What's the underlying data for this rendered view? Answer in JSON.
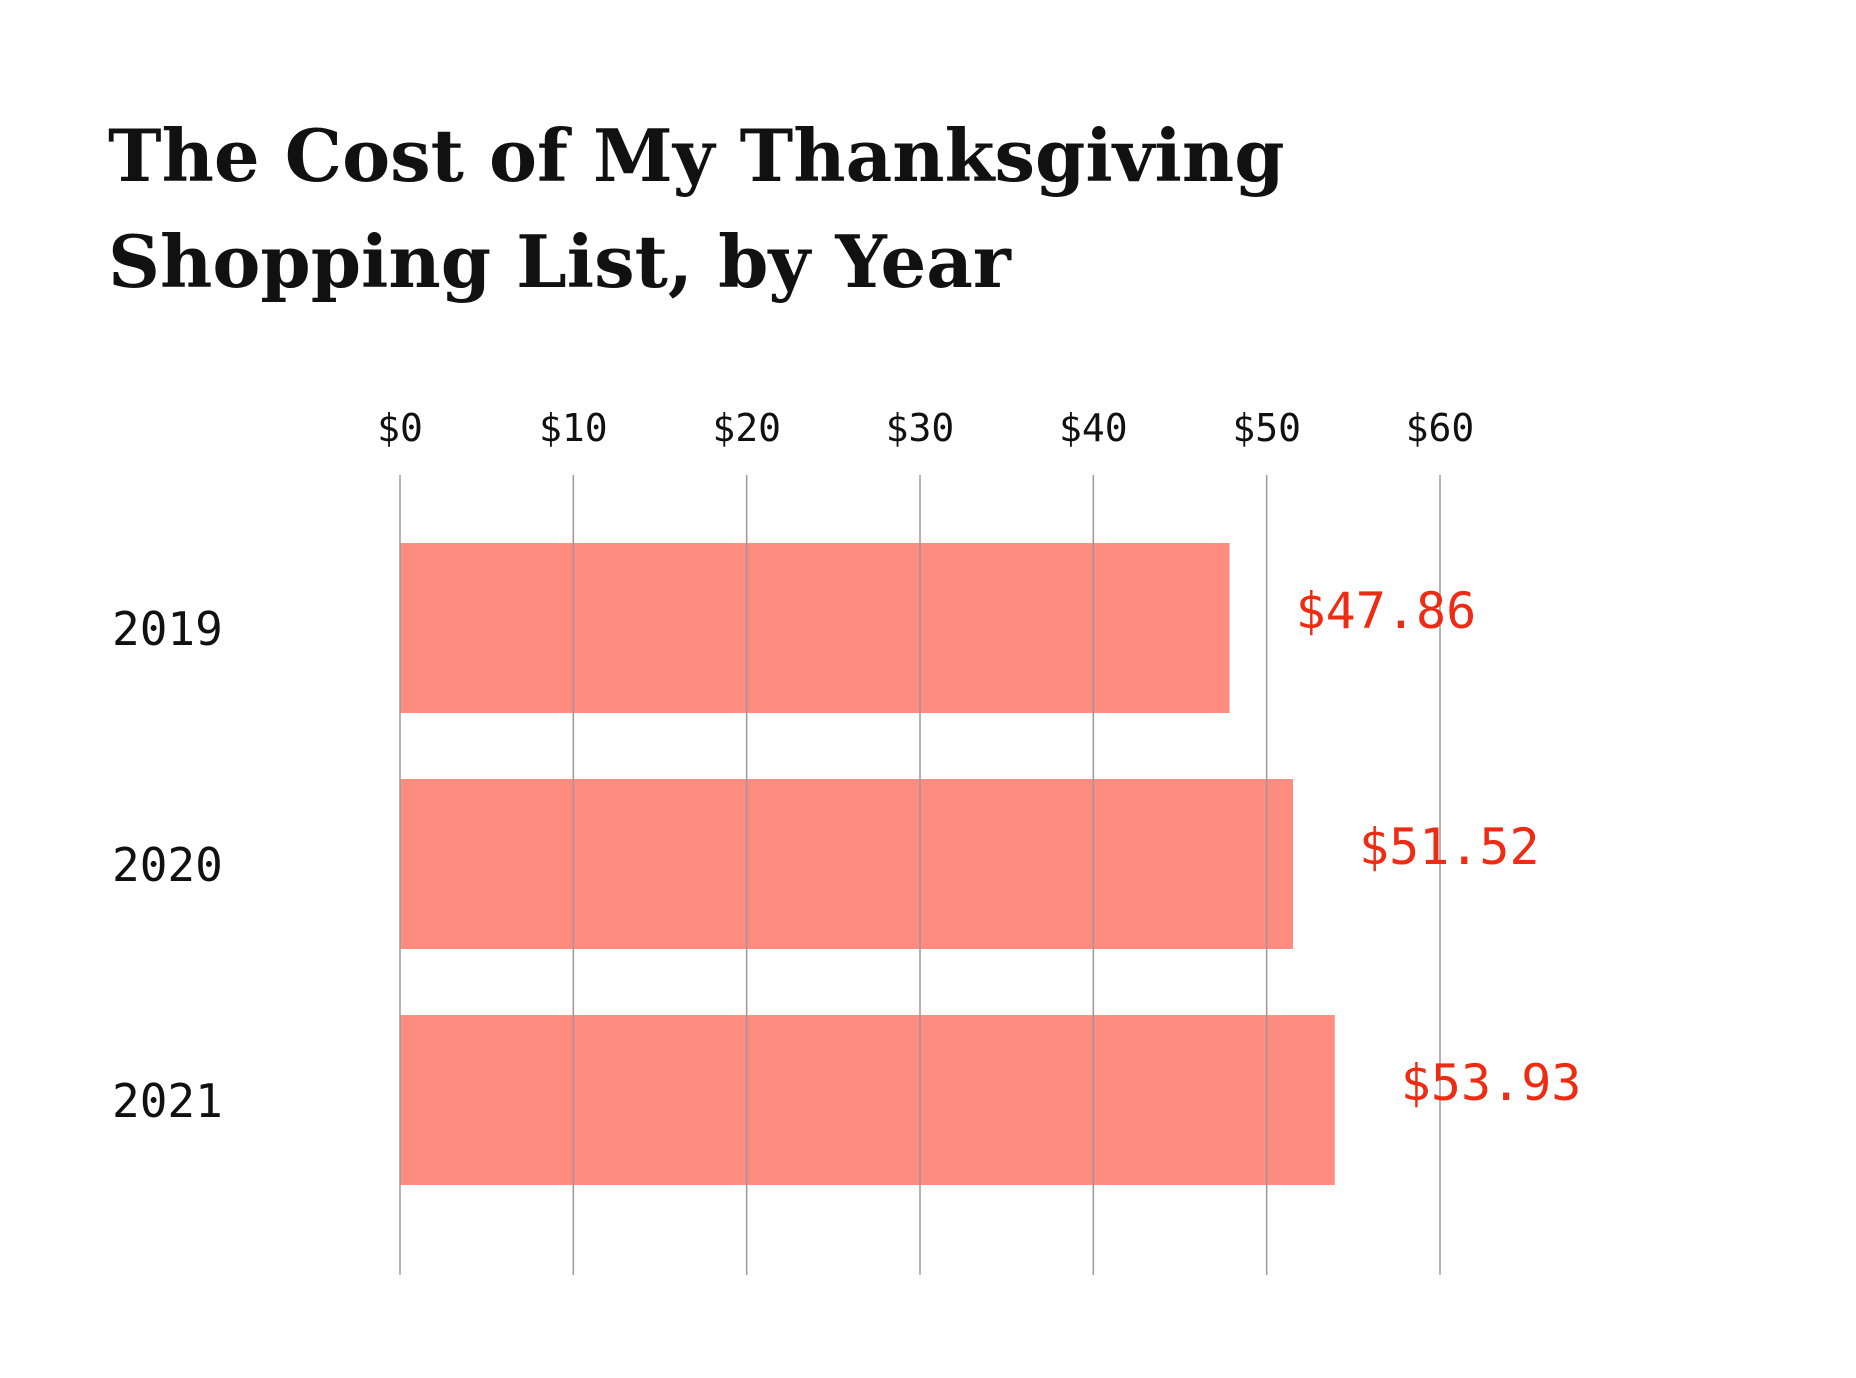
{
  "chart_data": {
    "type": "bar",
    "orientation": "horizontal",
    "title_lines": [
      "The Cost of My Thanksgiving",
      "Shopping List, by Year"
    ],
    "categories": [
      "2019",
      "2020",
      "2021"
    ],
    "values": [
      47.86,
      51.52,
      53.93
    ],
    "value_labels": [
      "$47.86",
      "$51.52",
      "$53.93"
    ],
    "x_ticks": [
      0,
      10,
      20,
      30,
      40,
      50,
      60
    ],
    "x_tick_labels": [
      "$0",
      "$10",
      "$20",
      "$30",
      "$40",
      "$50",
      "$60"
    ],
    "xlim": [
      0,
      60
    ],
    "axis_position": "top",
    "grid": true,
    "legend": "none",
    "xlabel": "",
    "ylabel": ""
  },
  "colors": {
    "bar": "#ff8c7e",
    "value_label": "#ee2c14",
    "gridline": "#9a9a9a",
    "text": "#111111",
    "background": "#ffffff"
  }
}
